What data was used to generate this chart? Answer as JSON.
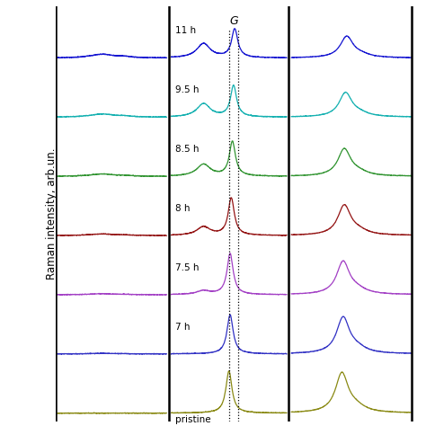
{
  "title": "",
  "ylabel": "Raman intensity, arb.un.",
  "samples": [
    "pristine",
    "7 h",
    "7.5 h",
    "8 h",
    "8.5 h",
    "9.5 h",
    "11 h"
  ],
  "colors": [
    "#808000",
    "#1f1fbf",
    "#9b30c0",
    "#8b0000",
    "#1f8b1f",
    "#00aaaa",
    "#0000cd"
  ],
  "background_color": "#ffffff",
  "g_label": "G"
}
